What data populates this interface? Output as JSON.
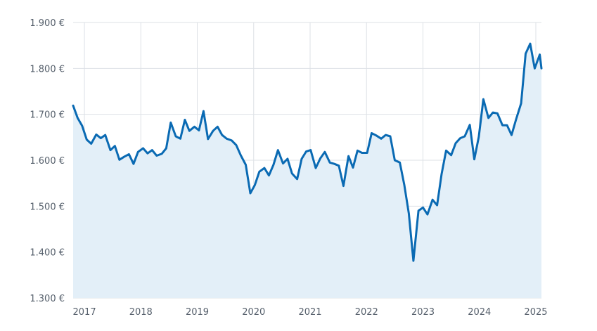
{
  "chart_data": {
    "type": "area",
    "title": "",
    "xlabel": "",
    "ylabel": "",
    "ylim": [
      1300,
      1900
    ],
    "y_ticks": [
      1300,
      1400,
      1500,
      1600,
      1700,
      1800,
      1900
    ],
    "y_tick_labels": [
      "1.300 €",
      "1.400 €",
      "1.500 €",
      "1.600 €",
      "1.700 €",
      "1.800 €",
      "1.900 €"
    ],
    "x_range": [
      2016.8,
      2025.1
    ],
    "x_ticks": [
      2017,
      2018,
      2019,
      2020,
      2021,
      2022,
      2023,
      2024,
      2025
    ],
    "x_tick_labels": [
      "2017",
      "2018",
      "2019",
      "2020",
      "2021",
      "2022",
      "2023",
      "2024",
      "2025"
    ],
    "grid": true,
    "colors": {
      "line": "#0a6ab3",
      "area": "#e3eff8",
      "grid": "#dde1e6",
      "tick_text": "#555f6b"
    },
    "series": [
      {
        "x": [
          2016.8,
          2016.88,
          2016.96,
          2017.04,
          2017.12,
          2017.21,
          2017.29,
          2017.37,
          2017.46,
          2017.54,
          2017.62,
          2017.71,
          2017.79,
          2017.87,
          2017.95,
          2018.04,
          2018.12,
          2018.2,
          2018.28,
          2018.37,
          2018.45,
          2018.53,
          2018.62,
          2018.7,
          2018.78,
          2018.86,
          2018.95,
          2019.03,
          2019.11,
          2019.19,
          2019.28,
          2019.36,
          2019.44,
          2019.52,
          2019.61,
          2019.69,
          2019.77,
          2019.86,
          2019.94,
          2020.02,
          2020.1,
          2020.19,
          2020.27,
          2020.35,
          2020.43,
          2020.52,
          2020.6,
          2020.68,
          2020.77,
          2020.85,
          2020.93,
          2021.01,
          2021.1,
          2021.18,
          2021.26,
          2021.35,
          2021.43,
          2021.51,
          2021.59,
          2021.68,
          2021.76,
          2021.84,
          2021.92,
          2022.01,
          2022.09,
          2022.17,
          2022.26,
          2022.34,
          2022.42,
          2022.5,
          2022.59,
          2022.67,
          2022.75,
          2022.83,
          2022.92,
          2023.0,
          2023.08,
          2023.17,
          2023.25,
          2023.33,
          2023.41,
          2023.5,
          2023.58,
          2023.66,
          2023.74,
          2023.83,
          2023.91,
          2023.99,
          2024.07,
          2024.16,
          2024.24,
          2024.32,
          2024.41,
          2024.49,
          2024.57,
          2024.65,
          2024.74,
          2024.82,
          2024.9,
          2024.98,
          2025.07,
          2025.1
        ],
        "values": [
          1719,
          1692,
          1675,
          1645,
          1636,
          1656,
          1648,
          1655,
          1622,
          1631,
          1601,
          1608,
          1613,
          1592,
          1618,
          1626,
          1615,
          1622,
          1610,
          1614,
          1626,
          1682,
          1652,
          1647,
          1688,
          1664,
          1673,
          1665,
          1707,
          1646,
          1664,
          1673,
          1655,
          1647,
          1643,
          1633,
          1611,
          1590,
          1528,
          1546,
          1575,
          1583,
          1567,
          1590,
          1622,
          1593,
          1603,
          1571,
          1559,
          1603,
          1619,
          1622,
          1583,
          1604,
          1618,
          1595,
          1592,
          1588,
          1544,
          1609,
          1584,
          1621,
          1616,
          1616,
          1659,
          1654,
          1647,
          1655,
          1652,
          1600,
          1595,
          1546,
          1484,
          1381,
          1490,
          1497,
          1482,
          1514,
          1502,
          1570,
          1621,
          1611,
          1637,
          1648,
          1652,
          1677,
          1602,
          1651,
          1733,
          1692,
          1704,
          1702,
          1676,
          1676,
          1655,
          1689,
          1724,
          1832,
          1854,
          1800,
          1830,
          1800
        ]
      }
    ]
  }
}
